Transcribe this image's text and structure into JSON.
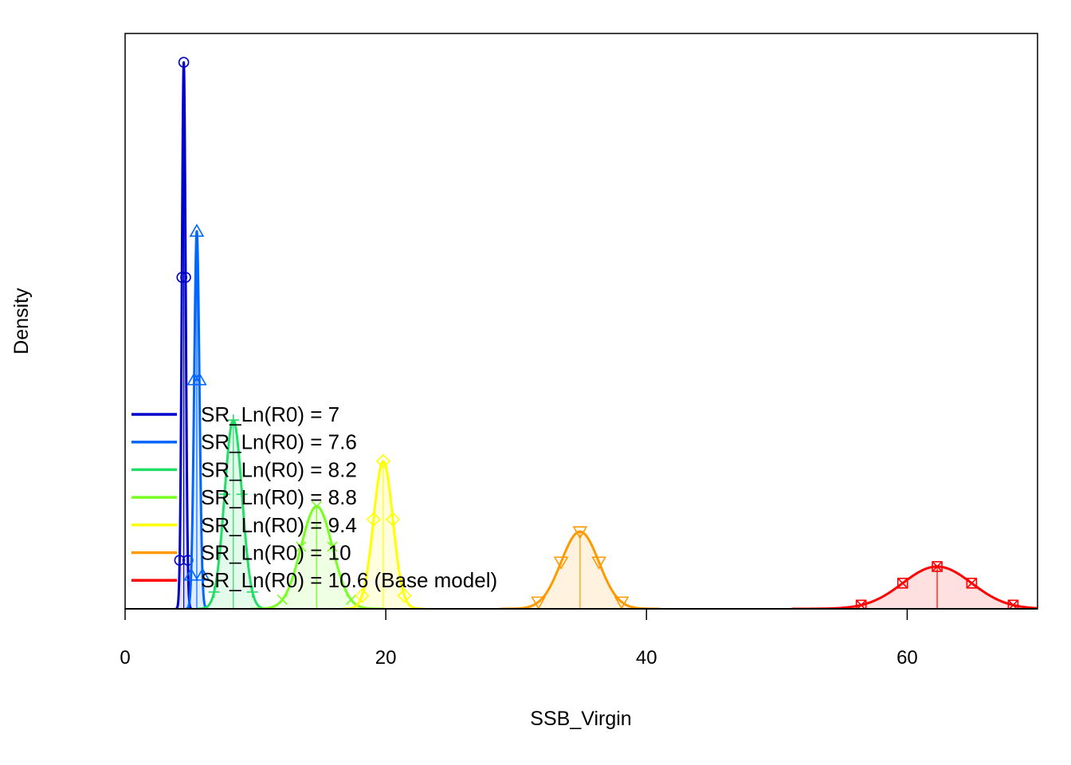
{
  "chart_data": {
    "type": "area",
    "title": "",
    "xlabel": "SSB_Virgin",
    "ylabel": "Density",
    "xlim": [
      0,
      70
    ],
    "ylim": [
      0,
      1
    ],
    "x_ticks": [
      0,
      20,
      40,
      60
    ],
    "y_ticks_shown": false,
    "grid": false,
    "legend_position": "bottom-left",
    "series": [
      {
        "name": "SR_Ln(R0) =  7",
        "color": "#0000CC",
        "marker": "circle",
        "mean": 4.5,
        "sd": 0.145,
        "peak_density": 0.97
      },
      {
        "name": "SR_Ln(R0) =  7.6",
        "color": "#0066FF",
        "marker": "triangle-up",
        "mean": 5.5,
        "sd": 0.2,
        "peak_density": 0.67
      },
      {
        "name": "SR_Ln(R0) =  8.2",
        "color": "#22DD66",
        "marker": "plus",
        "mean": 8.3,
        "sd": 0.67,
        "peak_density": 0.335
      },
      {
        "name": "SR_Ln(R0) =  8.8",
        "color": "#77FF22",
        "marker": "cross",
        "mean": 14.7,
        "sd": 1.2,
        "peak_density": 0.182
      },
      {
        "name": "SR_Ln(R0) =  9.4",
        "color": "#FFFF00",
        "marker": "diamond",
        "mean": 19.8,
        "sd": 0.74,
        "peak_density": 0.262
      },
      {
        "name": "SR_Ln(R0) =  10",
        "color": "#FF9900",
        "marker": "triangle-down",
        "mean": 34.9,
        "sd": 1.45,
        "peak_density": 0.137
      },
      {
        "name": "SR_Ln(R0) =  10.6 (Base model)",
        "color": "#FF0000",
        "marker": "square-x",
        "mean": 62.3,
        "sd": 2.65,
        "peak_density": 0.075
      }
    ]
  }
}
